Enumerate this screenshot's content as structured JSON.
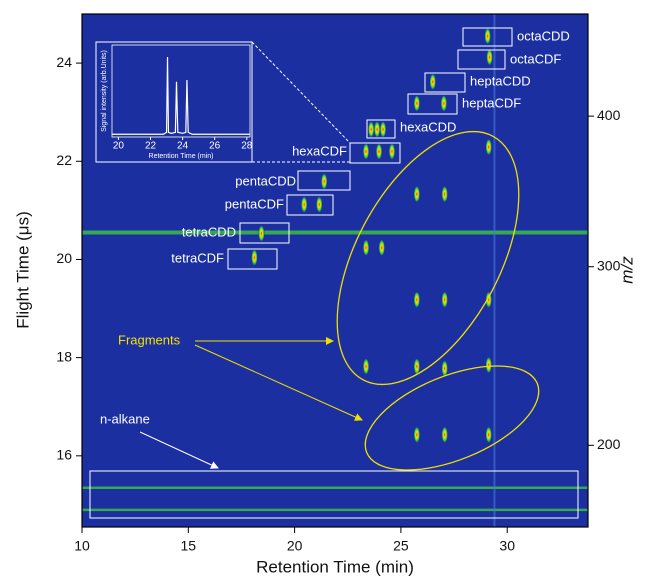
{
  "chart_data": [
    {
      "type": "image",
      "xlabel": "Retention Time (min)",
      "ylabel": "Flight Time (μs)",
      "y2label": "m/z",
      "xlim": [
        10,
        33.8
      ],
      "xticks": [
        10,
        15,
        20,
        25,
        30
      ],
      "ylim": [
        14.55,
        25.0
      ],
      "yticks": [
        16,
        18,
        20,
        22,
        24
      ],
      "y2lim": [
        161,
        476
      ],
      "y2ticks": [
        200,
        300,
        400
      ],
      "y2scale": "sqrt",
      "background": "#1b2fa0",
      "bands": [
        20.55,
        15.35,
        14.9
      ],
      "streaks": [
        29.4
      ],
      "spots": {
        "x": [
          18.11,
          18.44,
          20.45,
          21.16,
          21.39,
          23.36,
          23.97,
          24.58,
          23.6,
          23.88,
          24.16,
          25.75,
          27.02,
          26.5,
          29.17,
          29.08,
          23.36,
          24.1,
          25.75,
          27.06,
          29.13,
          25.75,
          27.06,
          29.13,
          23.36,
          25.75,
          27.06,
          29.13,
          25.75,
          27.06,
          29.13
        ],
        "y": [
          20.04,
          20.53,
          21.12,
          21.12,
          21.59,
          22.2,
          22.2,
          22.2,
          22.65,
          22.65,
          22.65,
          23.18,
          23.18,
          23.62,
          24.12,
          24.55,
          20.24,
          20.24,
          21.33,
          21.33,
          22.29,
          19.18,
          19.18,
          19.18,
          17.82,
          17.82,
          17.78,
          17.85,
          16.43,
          16.43,
          16.43
        ]
      },
      "annotations": [
        "octaCDD",
        "octaCDF",
        "heptaCDD",
        "heptaCDF",
        "hexaCDD",
        "hexaCDF",
        "pentaCDD",
        "pentaCDF",
        "tetraCDD",
        "tetraCDF",
        "Fragments",
        "n-alkane"
      ]
    },
    {
      "type": "line",
      "xlabel": "Retention Time (min)",
      "ylabel": "Signal intensity (arb.Units)",
      "xlim": [
        19.6,
        28.2
      ],
      "xticks": [
        20,
        22,
        24,
        26,
        28
      ],
      "ylim": [
        0,
        100
      ],
      "color": "#ffffff",
      "x": [
        19.6,
        22.8,
        23.0,
        23.06,
        23.12,
        23.3,
        23.55,
        23.62,
        23.7,
        24.0,
        24.2,
        24.27,
        24.35,
        24.6,
        28.2
      ],
      "values": [
        3,
        3,
        5,
        87,
        5,
        4,
        5,
        60,
        5,
        4,
        5,
        62,
        5,
        3,
        3
      ]
    }
  ]
}
